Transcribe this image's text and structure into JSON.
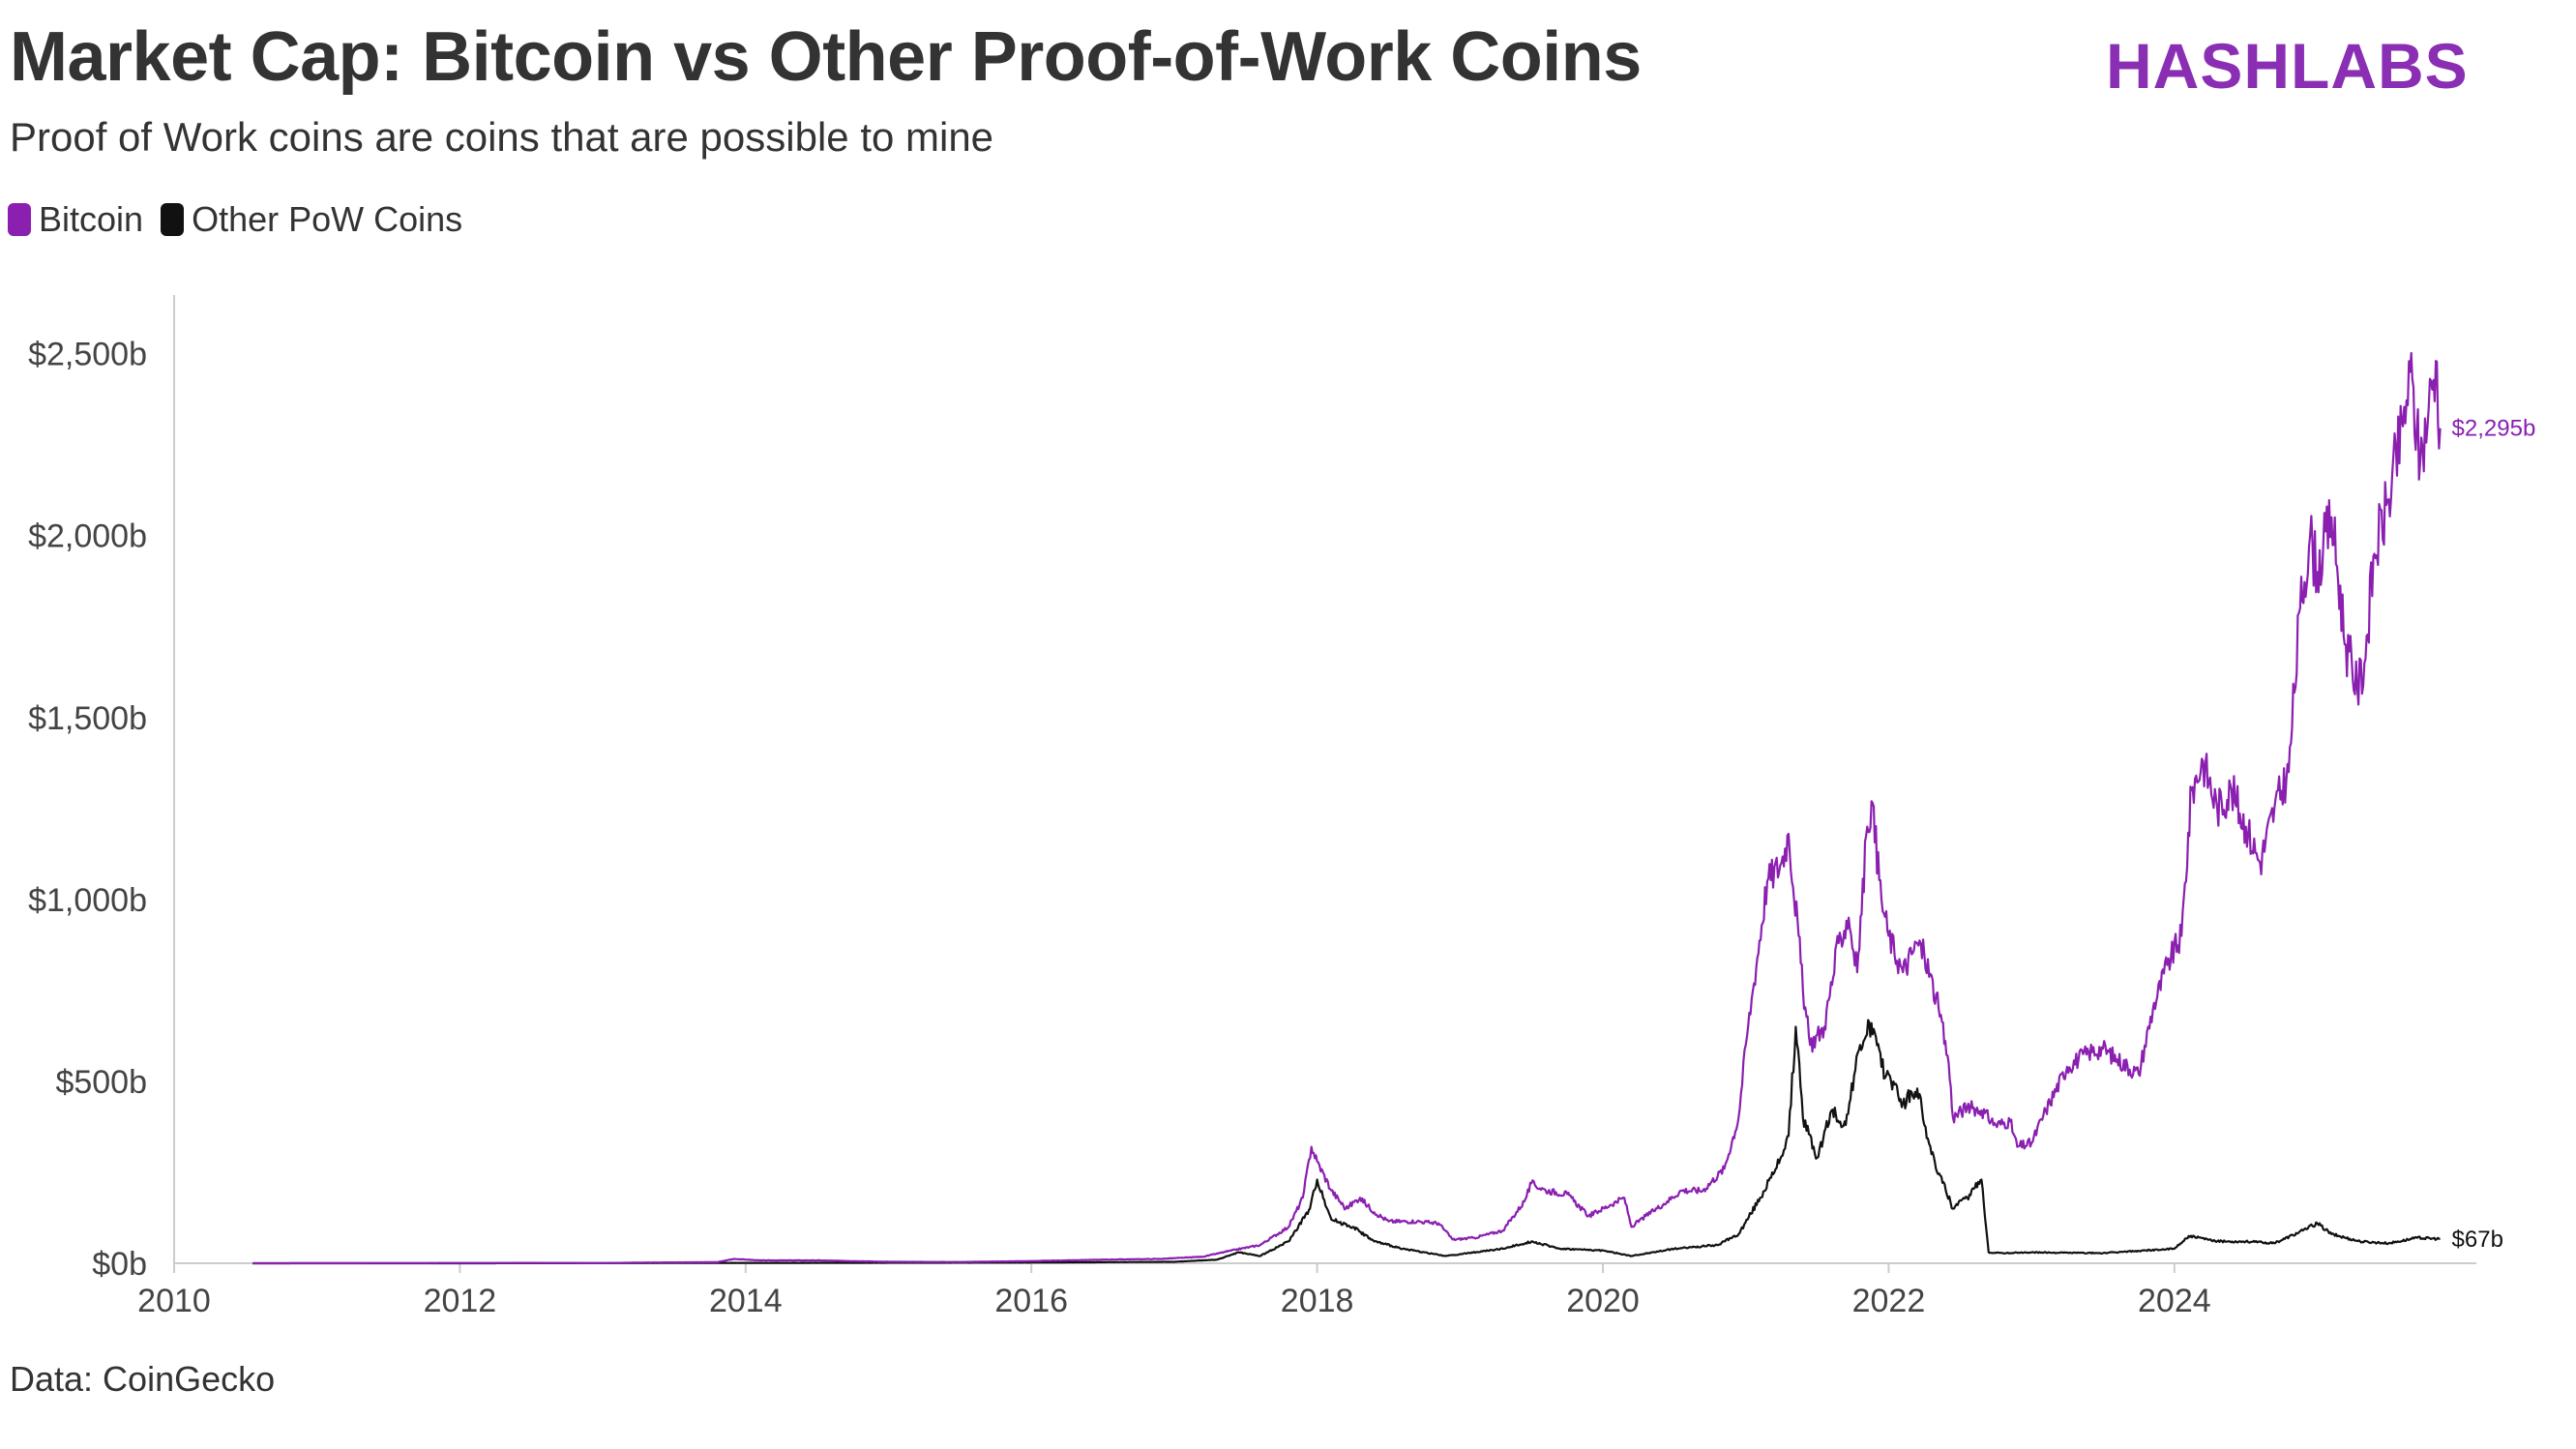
{
  "header": {
    "title": "Market Cap: Bitcoin vs Other Proof-of-Work Coins",
    "subtitle": "Proof of Work coins are coins that are possible to mine",
    "brand": "HASHLABS"
  },
  "footer": {
    "source": "Data: CoinGecko"
  },
  "colors": {
    "bitcoin": "#8a1fb0",
    "other": "#111111",
    "brand": "#8a2eb3",
    "axis": "#cccccc"
  },
  "chart_data": {
    "type": "line",
    "title": "Market Cap: Bitcoin vs Other Proof-of-Work Coins",
    "subtitle": "Proof of Work coins are coins that are possible to mine",
    "xlabel": "",
    "ylabel": "",
    "x_unit": "year",
    "xlim": [
      2010,
      2026.1
    ],
    "ylim": [
      0,
      2600
    ],
    "y_ticks": [
      0,
      500,
      1000,
      1500,
      2000,
      2500
    ],
    "y_tick_labels": [
      "$0b",
      "$500b",
      "$1,000b",
      "$1,500b",
      "$2,000b",
      "$2,500b"
    ],
    "x_ticks": [
      2010,
      2012,
      2014,
      2016,
      2018,
      2020,
      2022,
      2024
    ],
    "x_tick_labels": [
      "2010",
      "2012",
      "2014",
      "2016",
      "2018",
      "2020",
      "2022",
      "2024"
    ],
    "grid": false,
    "legend_position": "top-left",
    "series": [
      {
        "name": "Bitcoin",
        "color": "#8a1fb0",
        "end_label": "$2,295b",
        "points": [
          [
            2010.55,
            0
          ],
          [
            2011.5,
            0.5
          ],
          [
            2012.5,
            1
          ],
          [
            2013.0,
            0.5
          ],
          [
            2013.3,
            2
          ],
          [
            2013.8,
            3
          ],
          [
            2013.92,
            12
          ],
          [
            2014.1,
            8
          ],
          [
            2014.5,
            8
          ],
          [
            2015.0,
            4
          ],
          [
            2015.5,
            3.5
          ],
          [
            2016.0,
            6
          ],
          [
            2016.5,
            10
          ],
          [
            2016.9,
            12
          ],
          [
            2017.2,
            18
          ],
          [
            2017.4,
            35
          ],
          [
            2017.6,
            50
          ],
          [
            2017.8,
            100
          ],
          [
            2017.9,
            180
          ],
          [
            2017.96,
            320
          ],
          [
            2018.0,
            280
          ],
          [
            2018.1,
            200
          ],
          [
            2018.2,
            150
          ],
          [
            2018.3,
            180
          ],
          [
            2018.4,
            140
          ],
          [
            2018.5,
            115
          ],
          [
            2018.7,
            115
          ],
          [
            2018.85,
            110
          ],
          [
            2018.95,
            65
          ],
          [
            2019.1,
            70
          ],
          [
            2019.3,
            90
          ],
          [
            2019.45,
            170
          ],
          [
            2019.5,
            220
          ],
          [
            2019.6,
            200
          ],
          [
            2019.75,
            190
          ],
          [
            2019.9,
            130
          ],
          [
            2020.05,
            160
          ],
          [
            2020.15,
            180
          ],
          [
            2020.2,
            100
          ],
          [
            2020.3,
            130
          ],
          [
            2020.45,
            170
          ],
          [
            2020.55,
            200
          ],
          [
            2020.7,
            200
          ],
          [
            2020.85,
            260
          ],
          [
            2020.95,
            400
          ],
          [
            2021.0,
            600
          ],
          [
            2021.05,
            750
          ],
          [
            2021.15,
            1050
          ],
          [
            2021.25,
            1100
          ],
          [
            2021.3,
            1180
          ],
          [
            2021.37,
            900
          ],
          [
            2021.4,
            750
          ],
          [
            2021.45,
            600
          ],
          [
            2021.55,
            650
          ],
          [
            2021.65,
            880
          ],
          [
            2021.72,
            950
          ],
          [
            2021.78,
            800
          ],
          [
            2021.85,
            1200
          ],
          [
            2021.88,
            1270
          ],
          [
            2021.95,
            1000
          ],
          [
            2022.0,
            900
          ],
          [
            2022.1,
            800
          ],
          [
            2022.2,
            880
          ],
          [
            2022.25,
            850
          ],
          [
            2022.35,
            700
          ],
          [
            2022.42,
            550
          ],
          [
            2022.45,
            400
          ],
          [
            2022.55,
            430
          ],
          [
            2022.65,
            420
          ],
          [
            2022.75,
            380
          ],
          [
            2022.85,
            390
          ],
          [
            2022.9,
            320
          ],
          [
            2023.0,
            330
          ],
          [
            2023.1,
            420
          ],
          [
            2023.25,
            540
          ],
          [
            2023.4,
            580
          ],
          [
            2023.5,
            590
          ],
          [
            2023.6,
            560
          ],
          [
            2023.75,
            520
          ],
          [
            2023.85,
            700
          ],
          [
            2023.95,
            820
          ],
          [
            2024.05,
            900
          ],
          [
            2024.12,
            1300
          ],
          [
            2024.2,
            1380
          ],
          [
            2024.3,
            1250
          ],
          [
            2024.4,
            1300
          ],
          [
            2024.5,
            1200
          ],
          [
            2024.6,
            1100
          ],
          [
            2024.7,
            1250
          ],
          [
            2024.8,
            1350
          ],
          [
            2024.88,
            1800
          ],
          [
            2024.95,
            2000
          ],
          [
            2025.0,
            1900
          ],
          [
            2025.1,
            2050
          ],
          [
            2025.2,
            1700
          ],
          [
            2025.28,
            1580
          ],
          [
            2025.33,
            1650
          ],
          [
            2025.4,
            1950
          ],
          [
            2025.5,
            2100
          ],
          [
            2025.6,
            2300
          ],
          [
            2025.65,
            2450
          ],
          [
            2025.72,
            2200
          ],
          [
            2025.78,
            2350
          ],
          [
            2025.83,
            2480
          ],
          [
            2025.86,
            2295
          ]
        ]
      },
      {
        "name": "Other PoW Coins",
        "color": "#111111",
        "end_label": "$67b",
        "points": [
          [
            2010.55,
            0
          ],
          [
            2012.0,
            0
          ],
          [
            2014.0,
            1
          ],
          [
            2016.0,
            2
          ],
          [
            2017.0,
            4
          ],
          [
            2017.3,
            10
          ],
          [
            2017.45,
            30
          ],
          [
            2017.6,
            20
          ],
          [
            2017.8,
            60
          ],
          [
            2017.95,
            150
          ],
          [
            2018.0,
            230
          ],
          [
            2018.1,
            120
          ],
          [
            2018.25,
            100
          ],
          [
            2018.4,
            60
          ],
          [
            2018.6,
            40
          ],
          [
            2018.9,
            20
          ],
          [
            2019.3,
            40
          ],
          [
            2019.5,
            60
          ],
          [
            2019.7,
            40
          ],
          [
            2020.0,
            35
          ],
          [
            2020.2,
            20
          ],
          [
            2020.5,
            40
          ],
          [
            2020.8,
            50
          ],
          [
            2020.95,
            80
          ],
          [
            2021.1,
            180
          ],
          [
            2021.2,
            250
          ],
          [
            2021.3,
            350
          ],
          [
            2021.35,
            650
          ],
          [
            2021.4,
            400
          ],
          [
            2021.5,
            290
          ],
          [
            2021.6,
            420
          ],
          [
            2021.7,
            380
          ],
          [
            2021.8,
            600
          ],
          [
            2021.88,
            660
          ],
          [
            2021.95,
            540
          ],
          [
            2022.0,
            520
          ],
          [
            2022.1,
            440
          ],
          [
            2022.2,
            480
          ],
          [
            2022.3,
            300
          ],
          [
            2022.4,
            200
          ],
          [
            2022.45,
            150
          ],
          [
            2022.55,
            180
          ],
          [
            2022.65,
            230
          ],
          [
            2022.7,
            30
          ],
          [
            2022.8,
            28
          ],
          [
            2023.0,
            30
          ],
          [
            2023.5,
            28
          ],
          [
            2024.0,
            40
          ],
          [
            2024.1,
            75
          ],
          [
            2024.3,
            60
          ],
          [
            2024.5,
            60
          ],
          [
            2024.7,
            55
          ],
          [
            2024.9,
            90
          ],
          [
            2025.0,
            110
          ],
          [
            2025.1,
            80
          ],
          [
            2025.3,
            60
          ],
          [
            2025.5,
            55
          ],
          [
            2025.7,
            70
          ],
          [
            2025.86,
            67
          ]
        ]
      }
    ]
  }
}
